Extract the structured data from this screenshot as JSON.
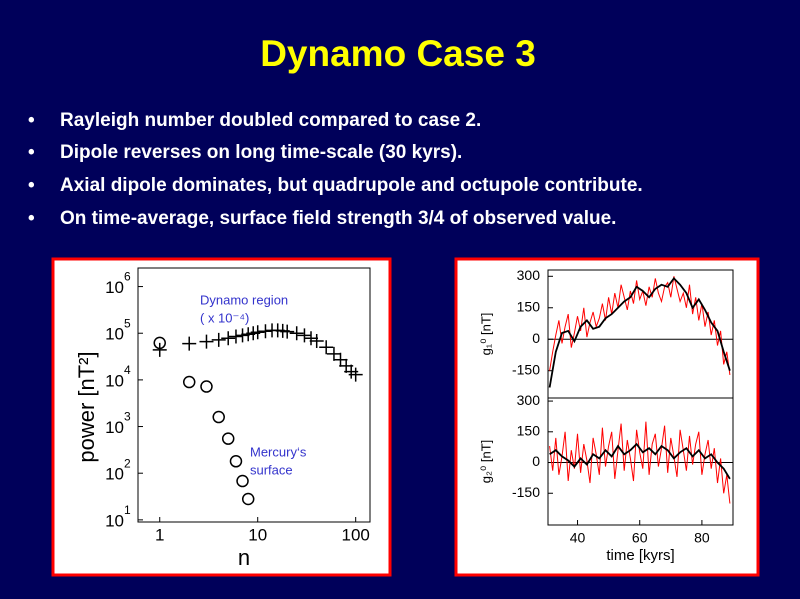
{
  "slide": {
    "title": "Dynamo Case 3",
    "bullets": [
      "Rayleigh number doubled compared to case 2.",
      "Dipole reverses on long time-scale (30 kyrs).",
      "Axial dipole dominates, but quadrupole and octupole contribute.",
      "On time-average, surface field strength 3/4 of observed value."
    ]
  },
  "chart_data": [
    {
      "type": "scatter",
      "xlog": true,
      "ylog": true,
      "xlabel": "n",
      "ylabel": "power [nT²]",
      "xlim": [
        0.6,
        140
      ],
      "ylim": [
        9,
        2500000
      ],
      "xticks": [
        1,
        10,
        100
      ],
      "yticks": [
        {
          "value": 10,
          "label": "10",
          "exponent": "1"
        },
        {
          "value": 100,
          "label": "10",
          "exponent": "2"
        },
        {
          "value": 1000,
          "label": "10",
          "exponent": "3"
        },
        {
          "value": 10000,
          "label": "10",
          "exponent": "4"
        },
        {
          "value": 100000,
          "label": "10",
          "exponent": "5"
        },
        {
          "value": 1000000,
          "label": "10",
          "exponent": "6"
        }
      ],
      "annotations": [
        {
          "text": "Dynamo region",
          "color": "#3333cc"
        },
        {
          "text": "( x 10⁻⁴)",
          "color": "#3333cc"
        },
        {
          "text": "Mercury‘s",
          "color": "#3333cc"
        },
        {
          "text": "surface",
          "color": "#3333cc"
        }
      ],
      "series": [
        {
          "marker": "circle",
          "color": "#000000",
          "x": [
            1,
            2,
            3,
            4,
            5,
            6,
            7,
            8
          ],
          "values": [
            62000,
            9000,
            7200,
            1600,
            550,
            180,
            68,
            28
          ]
        },
        {
          "marker": "plus",
          "color": "#000000",
          "x": [
            1,
            2,
            3,
            4,
            5,
            6,
            7,
            8,
            9,
            10,
            12,
            14,
            16,
            18,
            20,
            25,
            30,
            35,
            40,
            50,
            60,
            70,
            80,
            90,
            100
          ],
          "values": [
            44000,
            60000,
            66000,
            72000,
            78000,
            85000,
            90000,
            95000,
            100000,
            105000,
            110000,
            115000,
            115000,
            112000,
            108000,
            100000,
            90000,
            78000,
            68000,
            50000,
            36000,
            27000,
            20000,
            15000,
            13000
          ]
        }
      ]
    },
    {
      "type": "line",
      "ylabel": "g₁⁰ [nT]",
      "xlim": [
        30.5,
        90
      ],
      "ylim": [
        -280,
        330
      ],
      "yticks": [
        -150,
        0,
        150,
        300
      ],
      "zero_line": true,
      "series": [
        {
          "color": "#ff0000",
          "x": [
            31,
            32,
            33,
            34,
            35,
            36,
            37,
            38,
            39,
            40,
            41,
            42,
            43,
            44,
            45,
            46,
            47,
            48,
            49,
            50,
            51,
            52,
            53,
            54,
            55,
            56,
            57,
            58,
            59,
            60,
            61,
            62,
            63,
            64,
            65,
            66,
            67,
            68,
            69,
            70,
            71,
            72,
            73,
            74,
            75,
            76,
            77,
            78,
            79,
            80,
            81,
            82,
            83,
            84,
            85,
            86,
            87,
            88,
            89
          ],
          "values": [
            -150,
            -60,
            20,
            90,
            -20,
            60,
            120,
            -40,
            30,
            110,
            40,
            150,
            10,
            80,
            130,
            60,
            100,
            170,
            90,
            200,
            120,
            220,
            150,
            260,
            200,
            140,
            230,
            170,
            280,
            190,
            230,
            160,
            250,
            200,
            290,
            220,
            180,
            250,
            270,
            200,
            300,
            240,
            180,
            220,
            150,
            260,
            120,
            200,
            90,
            170,
            60,
            130,
            20,
            90,
            -30,
            40,
            -120,
            -60,
            -170
          ]
        },
        {
          "color": "#000000",
          "x": [
            31,
            33,
            35,
            37,
            39,
            41,
            43,
            45,
            47,
            49,
            51,
            53,
            55,
            57,
            59,
            61,
            63,
            65,
            67,
            69,
            71,
            73,
            75,
            77,
            79,
            81,
            83,
            85,
            87,
            89
          ],
          "values": [
            -230,
            -60,
            30,
            40,
            -10,
            60,
            90,
            50,
            60,
            100,
            120,
            150,
            180,
            200,
            250,
            230,
            200,
            240,
            260,
            250,
            290,
            260,
            220,
            150,
            190,
            140,
            80,
            40,
            -60,
            -150
          ]
        }
      ]
    },
    {
      "type": "line",
      "ylabel": "g₂⁰ [nT]",
      "xlabel": "time [kyrs]",
      "xlim": [
        30.5,
        90
      ],
      "xticks": [
        40,
        60,
        80
      ],
      "ylim": [
        -305,
        315
      ],
      "yticks": [
        -150,
        0,
        150,
        300
      ],
      "zero_line": true,
      "series": [
        {
          "color": "#ff0000",
          "x": [
            31,
            32,
            33,
            34,
            35,
            36,
            37,
            38,
            39,
            40,
            41,
            42,
            43,
            44,
            45,
            46,
            47,
            48,
            49,
            50,
            51,
            52,
            53,
            54,
            55,
            56,
            57,
            58,
            59,
            60,
            61,
            62,
            63,
            64,
            65,
            66,
            67,
            68,
            69,
            70,
            71,
            72,
            73,
            74,
            75,
            76,
            77,
            78,
            79,
            80,
            81,
            82,
            83,
            84,
            85,
            86,
            87,
            88,
            89
          ],
          "values": [
            80,
            -40,
            120,
            -60,
            30,
            150,
            -90,
            60,
            -30,
            140,
            -50,
            90,
            10,
            -100,
            120,
            40,
            -60,
            170,
            -20,
            80,
            150,
            -80,
            60,
            190,
            -40,
            110,
            20,
            -90,
            160,
            50,
            -30,
            200,
            -60,
            90,
            140,
            -20,
            70,
            180,
            -50,
            120,
            30,
            -70,
            160,
            60,
            -40,
            130,
            -10,
            90,
            150,
            -60,
            40,
            110,
            -30,
            70,
            -100,
            20,
            -150,
            -60,
            -200
          ]
        },
        {
          "color": "#000000",
          "x": [
            31,
            33,
            35,
            37,
            39,
            41,
            43,
            45,
            47,
            49,
            51,
            53,
            55,
            57,
            59,
            61,
            63,
            65,
            67,
            69,
            71,
            73,
            75,
            77,
            79,
            81,
            83,
            85,
            87,
            89
          ],
          "values": [
            40,
            60,
            30,
            10,
            -20,
            20,
            -10,
            40,
            20,
            60,
            30,
            80,
            40,
            60,
            90,
            50,
            70,
            40,
            80,
            60,
            20,
            50,
            70,
            30,
            60,
            20,
            40,
            0,
            -30,
            -80
          ]
        }
      ]
    }
  ]
}
